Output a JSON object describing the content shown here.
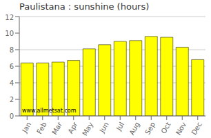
{
  "chart_data": {
    "type": "bar",
    "title": "Paulistana : sunshine (hours)",
    "categories": [
      "Jan",
      "Feb",
      "Mar",
      "Apr",
      "May",
      "Jun",
      "Jul",
      "Aug",
      "Sep",
      "Oct",
      "Nov",
      "Dec"
    ],
    "values": [
      6.4,
      6.4,
      6.5,
      6.7,
      8.1,
      8.6,
      9.0,
      9.1,
      9.6,
      9.5,
      8.3,
      6.8
    ],
    "color": "#FFFF00",
    "ylim": [
      0,
      12
    ],
    "yticks": [
      0,
      2,
      4,
      6,
      8,
      10,
      12
    ],
    "grid": true,
    "annotation": "www.allmetsat.com"
  }
}
